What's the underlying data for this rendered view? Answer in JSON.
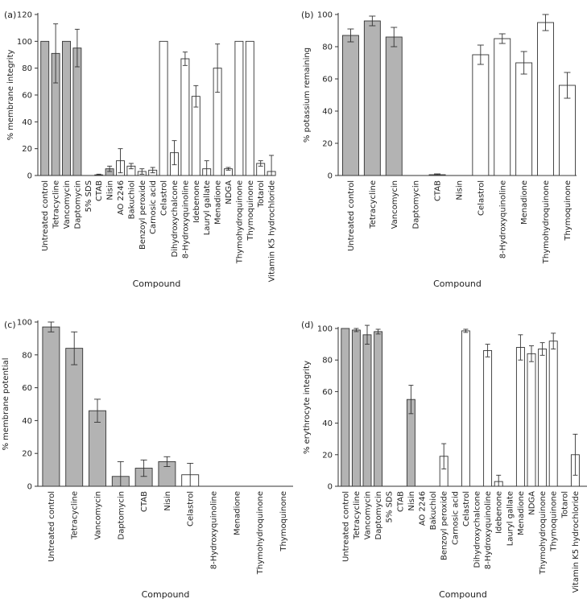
{
  "colors": {
    "filled": "#b3b3b3",
    "empty": "#ffffff",
    "stroke": "#333333"
  },
  "chart_data": [
    {
      "type": "bar",
      "panel": "(a)",
      "xlabel": "Compound",
      "ylabel": "% membrane integrity",
      "ylim": [
        0,
        120
      ],
      "yticks": [
        0,
        20,
        40,
        60,
        80,
        100,
        120
      ],
      "categories": [
        "Untreated control",
        "Tetracycline",
        "Vancomycin",
        "Daptomycin",
        "5% SDS",
        "CTAB",
        "Nisin",
        "AO 2246",
        "Bakuchiol",
        "Benzoyl peroxide",
        "Carnosic acid",
        "Celastrol",
        "Dihydroxychalcone",
        "8-Hydroxyquinoline",
        "Idebenone",
        "Lauryl gallate",
        "Menadione",
        "NDGA",
        "Thymohydroquinone",
        "Thymoquinone",
        "Totarol",
        "Vitamin K5 hydrochloride"
      ],
      "values": [
        100,
        91,
        100,
        95,
        0,
        0.5,
        5,
        11,
        7,
        3,
        4,
        100,
        17,
        87,
        59,
        5,
        80,
        5,
        100,
        100,
        9,
        3
      ],
      "errors": [
        0,
        22,
        0,
        14,
        0,
        0.5,
        2,
        9,
        2,
        2,
        2,
        0,
        9,
        5,
        8,
        6,
        18,
        1,
        0,
        0,
        2,
        12
      ],
      "filled": [
        true,
        true,
        true,
        true,
        false,
        true,
        true,
        false,
        false,
        false,
        false,
        false,
        false,
        false,
        false,
        false,
        false,
        false,
        false,
        false,
        false,
        false
      ]
    },
    {
      "type": "bar",
      "panel": "(b)",
      "xlabel": "Compound",
      "ylabel": "% potassium remaining",
      "ylim": [
        0,
        100
      ],
      "yticks": [
        0,
        20,
        40,
        60,
        80,
        100
      ],
      "categories": [
        "Untreated control",
        "Tetracycline",
        "Vancomycin",
        "Daptomycin",
        "CTAB",
        "Nisin",
        "Celastrol",
        "8-Hydroxyquinoline",
        "Menadione",
        "Thymohydroquinone",
        "Thymoquinone"
      ],
      "values": [
        87,
        96,
        86,
        0,
        0.5,
        0,
        75,
        85,
        70,
        95,
        56
      ],
      "errors": [
        4,
        3,
        6,
        0,
        0.5,
        0,
        6,
        3,
        7,
        5,
        8
      ],
      "filled": [
        true,
        true,
        true,
        true,
        true,
        true,
        false,
        false,
        false,
        false,
        false
      ]
    },
    {
      "type": "bar",
      "panel": "(c)",
      "xlabel": "Compound",
      "ylabel": "% membrane potential",
      "ylim": [
        0,
        100
      ],
      "yticks": [
        0,
        20,
        40,
        60,
        80,
        100
      ],
      "categories": [
        "Untreated control",
        "Tetracycline",
        "Vancomycin",
        "Daptomycin",
        "CTAB",
        "Nisin",
        "Celastrol",
        "8-Hydroxyquinoline",
        "Menadione",
        "Thymohydroquinone",
        "Thymoquinone"
      ],
      "values": [
        97,
        84,
        46,
        6,
        11,
        15,
        7,
        0,
        0,
        0,
        0
      ],
      "errors": [
        3,
        10,
        7,
        9,
        5,
        3,
        7,
        0,
        0,
        0,
        0
      ],
      "filled": [
        true,
        true,
        true,
        true,
        true,
        true,
        false,
        false,
        false,
        false,
        false
      ]
    },
    {
      "type": "bar",
      "panel": "(d)",
      "xlabel": "Compound",
      "ylabel": "% erythrocyte integrity",
      "ylim": [
        0,
        100
      ],
      "yticks": [
        0,
        20,
        40,
        60,
        80,
        100
      ],
      "categories": [
        "Untreated control",
        "Tetracycline",
        "Vancomycin",
        "Daptomycin",
        "5% SDS",
        "CTAB",
        "Nisin",
        "AO 2246",
        "Bakuchiol",
        "Benzoyl peroxide",
        "Carnosic acid",
        "Celastrol",
        "Dihydroxychalcone",
        "8-Hydroxyquinoline",
        "Idebenone",
        "Lauryl gallate",
        "Menadione",
        "NDGA",
        "Thymohydroquinone",
        "Thymoquinone",
        "Totarol",
        "Vitamin K5 hydrochloride"
      ],
      "values": [
        100,
        99,
        96,
        98,
        0,
        0,
        55,
        0,
        0,
        19,
        0,
        98.5,
        0,
        86,
        3,
        0,
        88,
        84,
        87,
        92,
        0,
        20
      ],
      "errors": [
        0,
        1,
        6,
        1.5,
        0,
        0,
        9,
        0,
        0,
        8,
        0,
        1,
        0,
        4,
        4,
        0,
        8,
        5,
        4,
        5,
        0,
        13
      ],
      "filled": [
        true,
        true,
        true,
        true,
        false,
        true,
        true,
        false,
        false,
        false,
        false,
        false,
        false,
        false,
        false,
        false,
        false,
        false,
        false,
        false,
        false,
        false
      ]
    }
  ]
}
